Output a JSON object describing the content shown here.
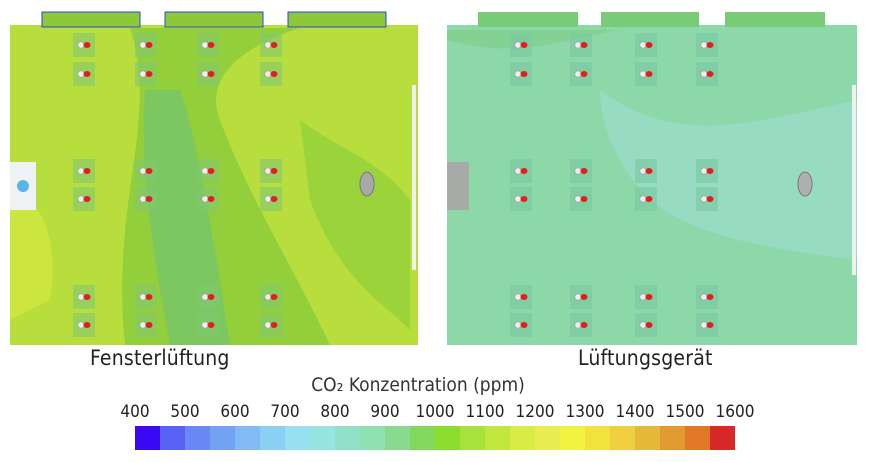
{
  "panels": [
    {
      "label": "Fensterlüftung",
      "background": "#b4dc3c",
      "window_color": "#8cc83a"
    },
    {
      "label": "Lüftungsgerät",
      "background": "#8cd8a8",
      "window_color": "#78cc78"
    }
  ],
  "colorbar": {
    "title": "CO₂ Konzentration (ppm)",
    "ticks": [
      "400",
      "500",
      "600",
      "700",
      "800",
      "900",
      "1000",
      "1100",
      "1200",
      "1300",
      "1400",
      "1500",
      "1600"
    ],
    "range": [
      400,
      1600
    ],
    "colors": [
      "#3a08f5",
      "#5562f2",
      "#6a88f5",
      "#74a2f2",
      "#82baf5",
      "#8cd0f5",
      "#98e0f2",
      "#98e4e0",
      "#92e0ca",
      "#90e0b0",
      "#88da90",
      "#82d85a",
      "#8cdc2e",
      "#a8e03c",
      "#c2e840",
      "#d8ec44",
      "#e8ee52",
      "#f2f240",
      "#f2e23e",
      "#f0d040",
      "#e8b838",
      "#e29a30",
      "#e07828",
      "#d82828"
    ]
  }
}
